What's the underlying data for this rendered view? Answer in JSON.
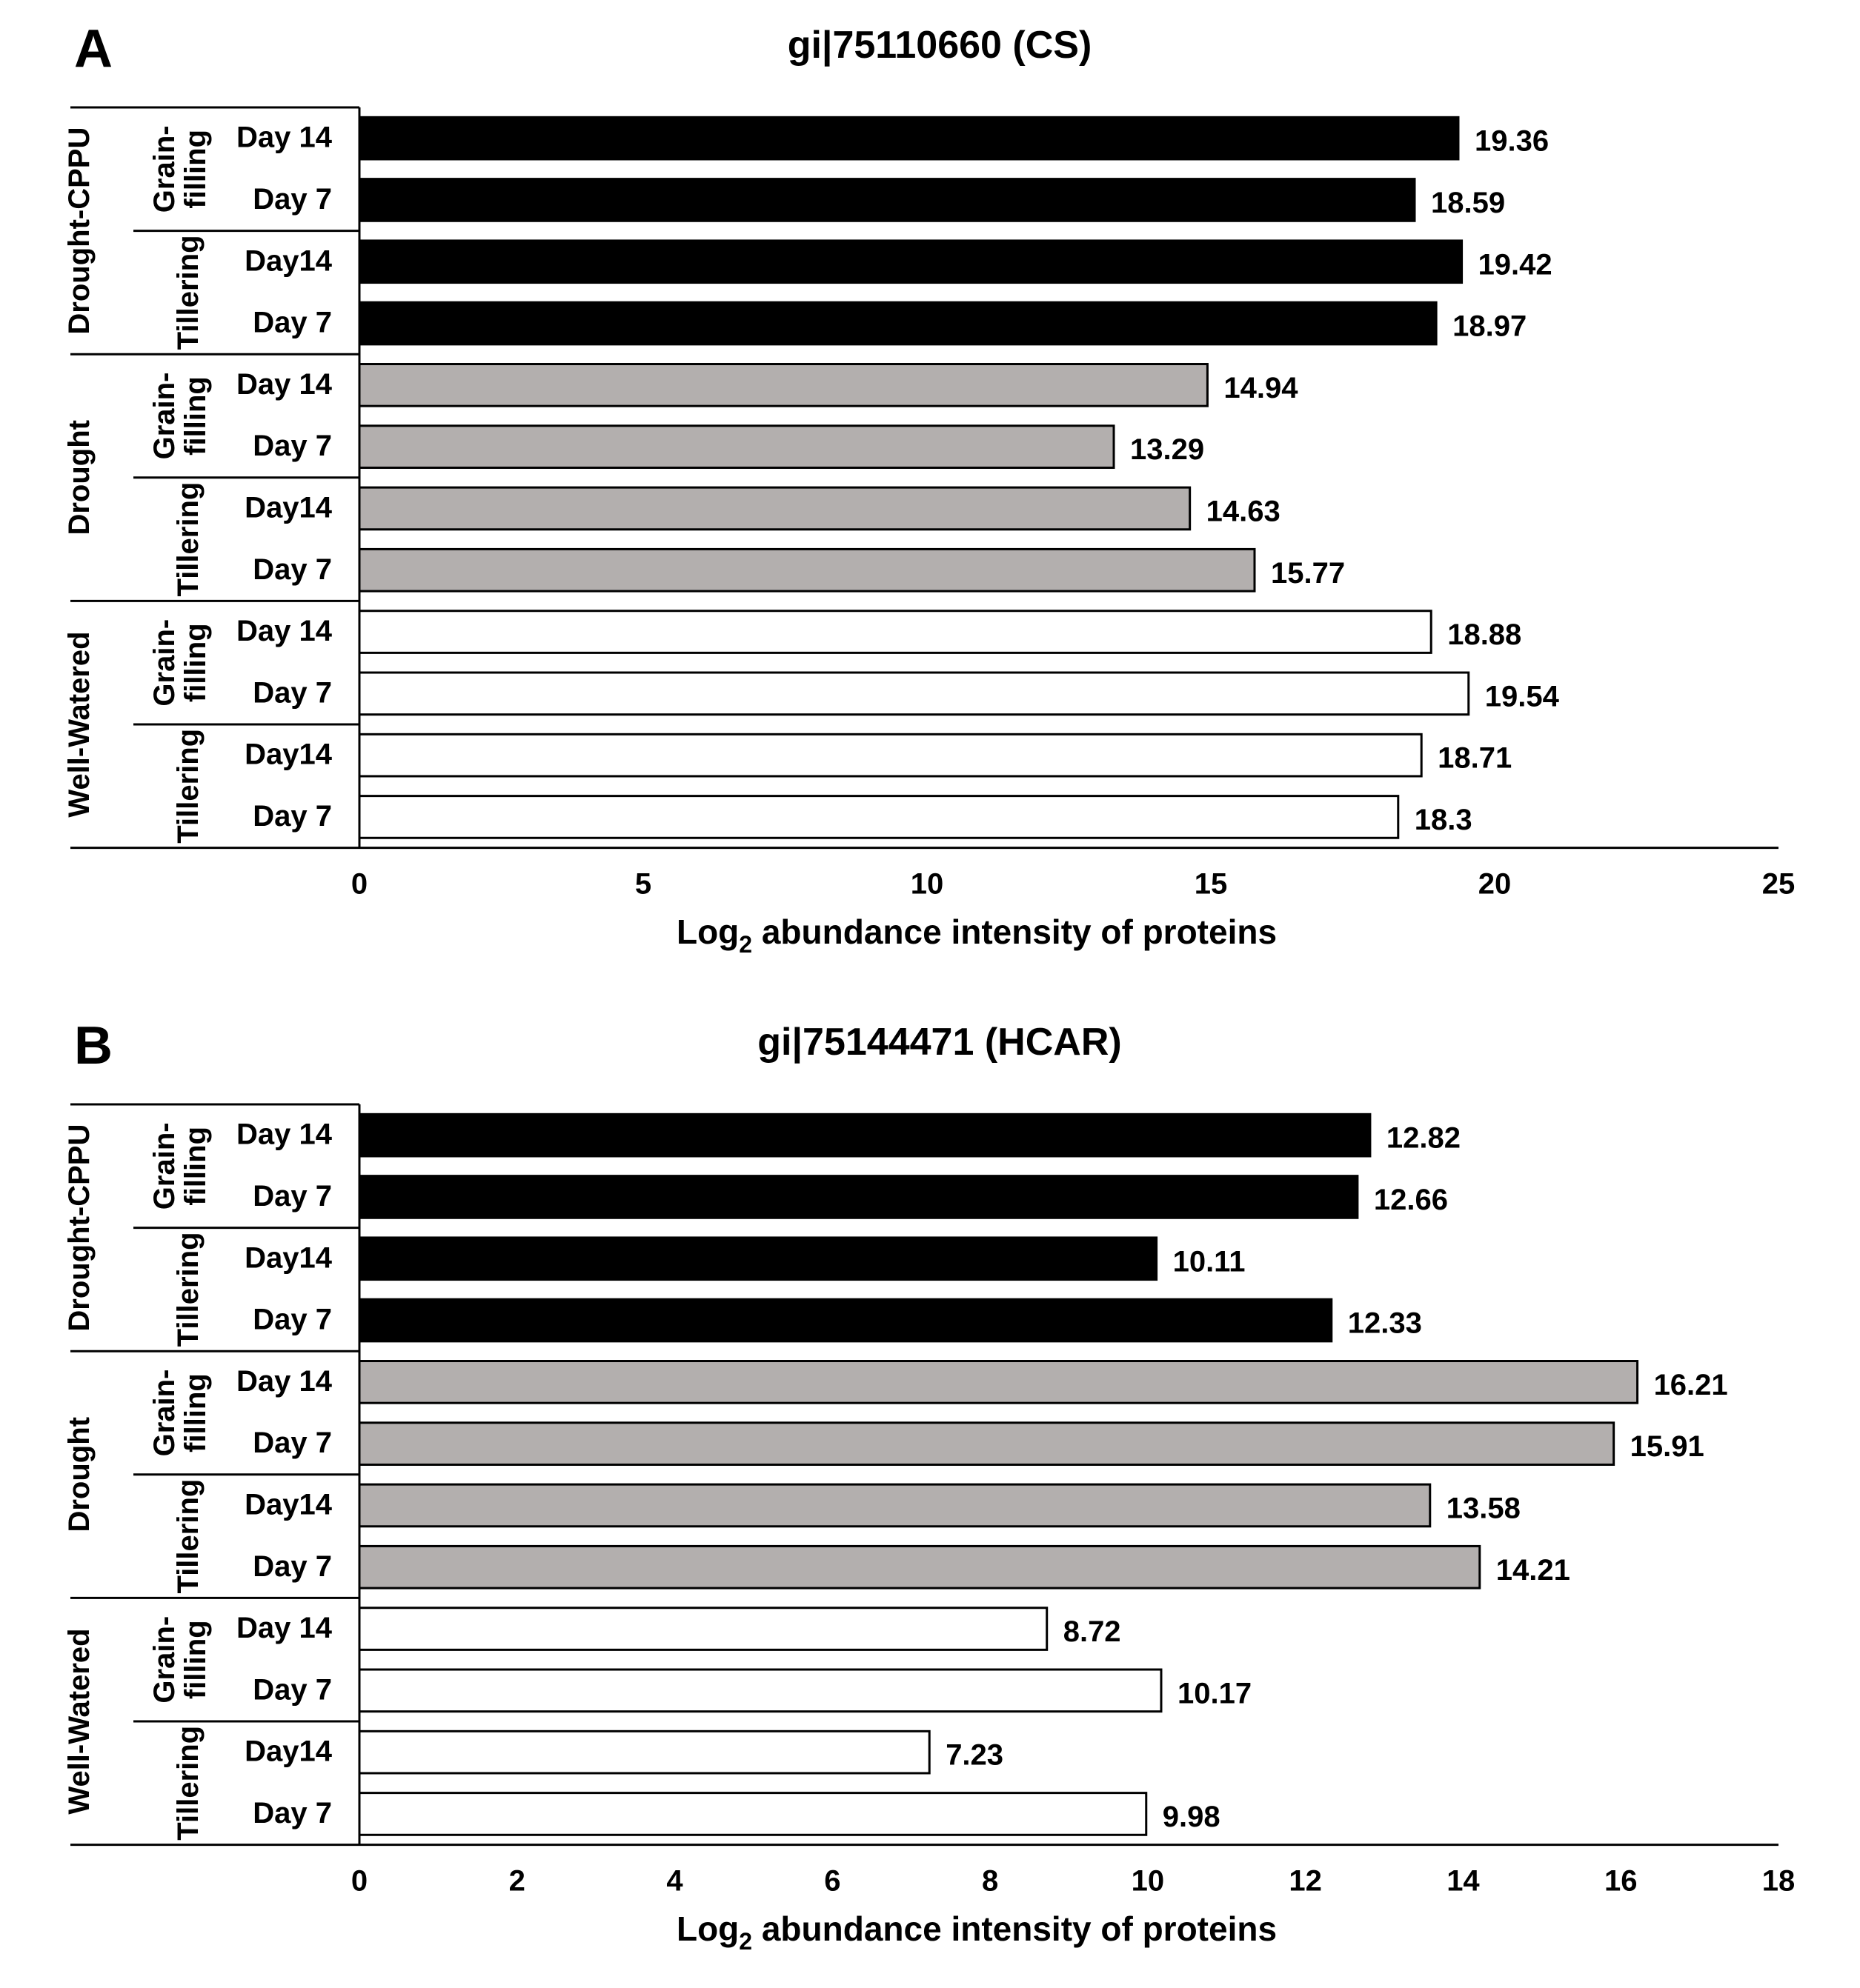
{
  "chart_data": [
    {
      "panel_label": "A",
      "type": "bar",
      "orientation": "horizontal",
      "title": "gi|75110660 (CS)",
      "xlabel_main": "Log",
      "xlabel_sub": "2",
      "xlabel_rest": " abundance intensity of proteins",
      "xlim": [
        0,
        25
      ],
      "xticks": [
        0,
        5,
        10,
        15,
        20,
        25
      ],
      "groups": [
        {
          "treatment": "Drought-CPPU",
          "color": "#000000",
          "stages": [
            {
              "name_line1": "Grain-",
              "name_line2": "filling",
              "bars": [
                {
                  "label": "Day 14",
                  "value": 19.36,
                  "value_label": "19.36"
                },
                {
                  "label": "Day 7",
                  "value": 18.59,
                  "value_label": "18.59"
                }
              ]
            },
            {
              "name_line1": "Tillering",
              "name_line2": "",
              "bars": [
                {
                  "label": "Day14",
                  "value": 19.42,
                  "value_label": "19.42"
                },
                {
                  "label": "Day 7",
                  "value": 18.97,
                  "value_label": "18.97"
                }
              ]
            }
          ]
        },
        {
          "treatment": "Drought",
          "color": "#b3afae",
          "stages": [
            {
              "name_line1": "Grain-",
              "name_line2": "filling",
              "bars": [
                {
                  "label": "Day 14",
                  "value": 14.94,
                  "value_label": "14.94"
                },
                {
                  "label": "Day 7",
                  "value": 13.29,
                  "value_label": "13.29"
                }
              ]
            },
            {
              "name_line1": "Tillering",
              "name_line2": "",
              "bars": [
                {
                  "label": "Day14",
                  "value": 14.63,
                  "value_label": "14.63"
                },
                {
                  "label": "Day 7",
                  "value": 15.77,
                  "value_label": "15.77"
                }
              ]
            }
          ]
        },
        {
          "treatment": "Well-Watered",
          "color": "#ffffff",
          "stages": [
            {
              "name_line1": "Grain-",
              "name_line2": "filling",
              "bars": [
                {
                  "label": "Day 14",
                  "value": 18.88,
                  "value_label": "18.88"
                },
                {
                  "label": "Day 7",
                  "value": 19.54,
                  "value_label": "19.54"
                }
              ]
            },
            {
              "name_line1": "Tillering",
              "name_line2": "",
              "bars": [
                {
                  "label": "Day14",
                  "value": 18.71,
                  "value_label": "18.71"
                },
                {
                  "label": "Day 7",
                  "value": 18.3,
                  "value_label": "18.3"
                }
              ]
            }
          ]
        }
      ]
    },
    {
      "panel_label": "B",
      "type": "bar",
      "orientation": "horizontal",
      "title": "gi|75144471 (HCAR)",
      "xlabel_main": "Log",
      "xlabel_sub": "2",
      "xlabel_rest": " abundance intensity of proteins",
      "xlim": [
        0,
        18
      ],
      "xticks": [
        0,
        2,
        4,
        6,
        8,
        10,
        12,
        14,
        16,
        18
      ],
      "groups": [
        {
          "treatment": "Drought-CPPU",
          "color": "#000000",
          "stages": [
            {
              "name_line1": "Grain-",
              "name_line2": "filling",
              "bars": [
                {
                  "label": "Day 14",
                  "value": 12.82,
                  "value_label": "12.82"
                },
                {
                  "label": "Day 7",
                  "value": 12.66,
                  "value_label": "12.66"
                }
              ]
            },
            {
              "name_line1": "Tillering",
              "name_line2": "",
              "bars": [
                {
                  "label": "Day14",
                  "value": 10.11,
                  "value_label": "10.11"
                },
                {
                  "label": "Day 7",
                  "value": 12.33,
                  "value_label": "12.33"
                }
              ]
            }
          ]
        },
        {
          "treatment": "Drought",
          "color": "#b3afae",
          "stages": [
            {
              "name_line1": "Grain-",
              "name_line2": "filling",
              "bars": [
                {
                  "label": "Day 14",
                  "value": 16.21,
                  "value_label": "16.21"
                },
                {
                  "label": "Day 7",
                  "value": 15.91,
                  "value_label": "15.91"
                }
              ]
            },
            {
              "name_line1": "Tillering",
              "name_line2": "",
              "bars": [
                {
                  "label": "Day14",
                  "value": 13.58,
                  "value_label": "13.58"
                },
                {
                  "label": "Day 7",
                  "value": 14.21,
                  "value_label": "14.21"
                }
              ]
            }
          ]
        },
        {
          "treatment": "Well-Watered",
          "color": "#ffffff",
          "stages": [
            {
              "name_line1": "Grain-",
              "name_line2": "filling",
              "bars": [
                {
                  "label": "Day 14",
                  "value": 8.72,
                  "value_label": "8.72"
                },
                {
                  "label": "Day 7",
                  "value": 10.17,
                  "value_label": "10.17"
                }
              ]
            },
            {
              "name_line1": "Tillering",
              "name_line2": "",
              "bars": [
                {
                  "label": "Day14",
                  "value": 7.23,
                  "value_label": "7.23"
                },
                {
                  "label": "Day 7",
                  "value": 9.98,
                  "value_label": "9.98"
                }
              ]
            }
          ]
        }
      ]
    }
  ]
}
